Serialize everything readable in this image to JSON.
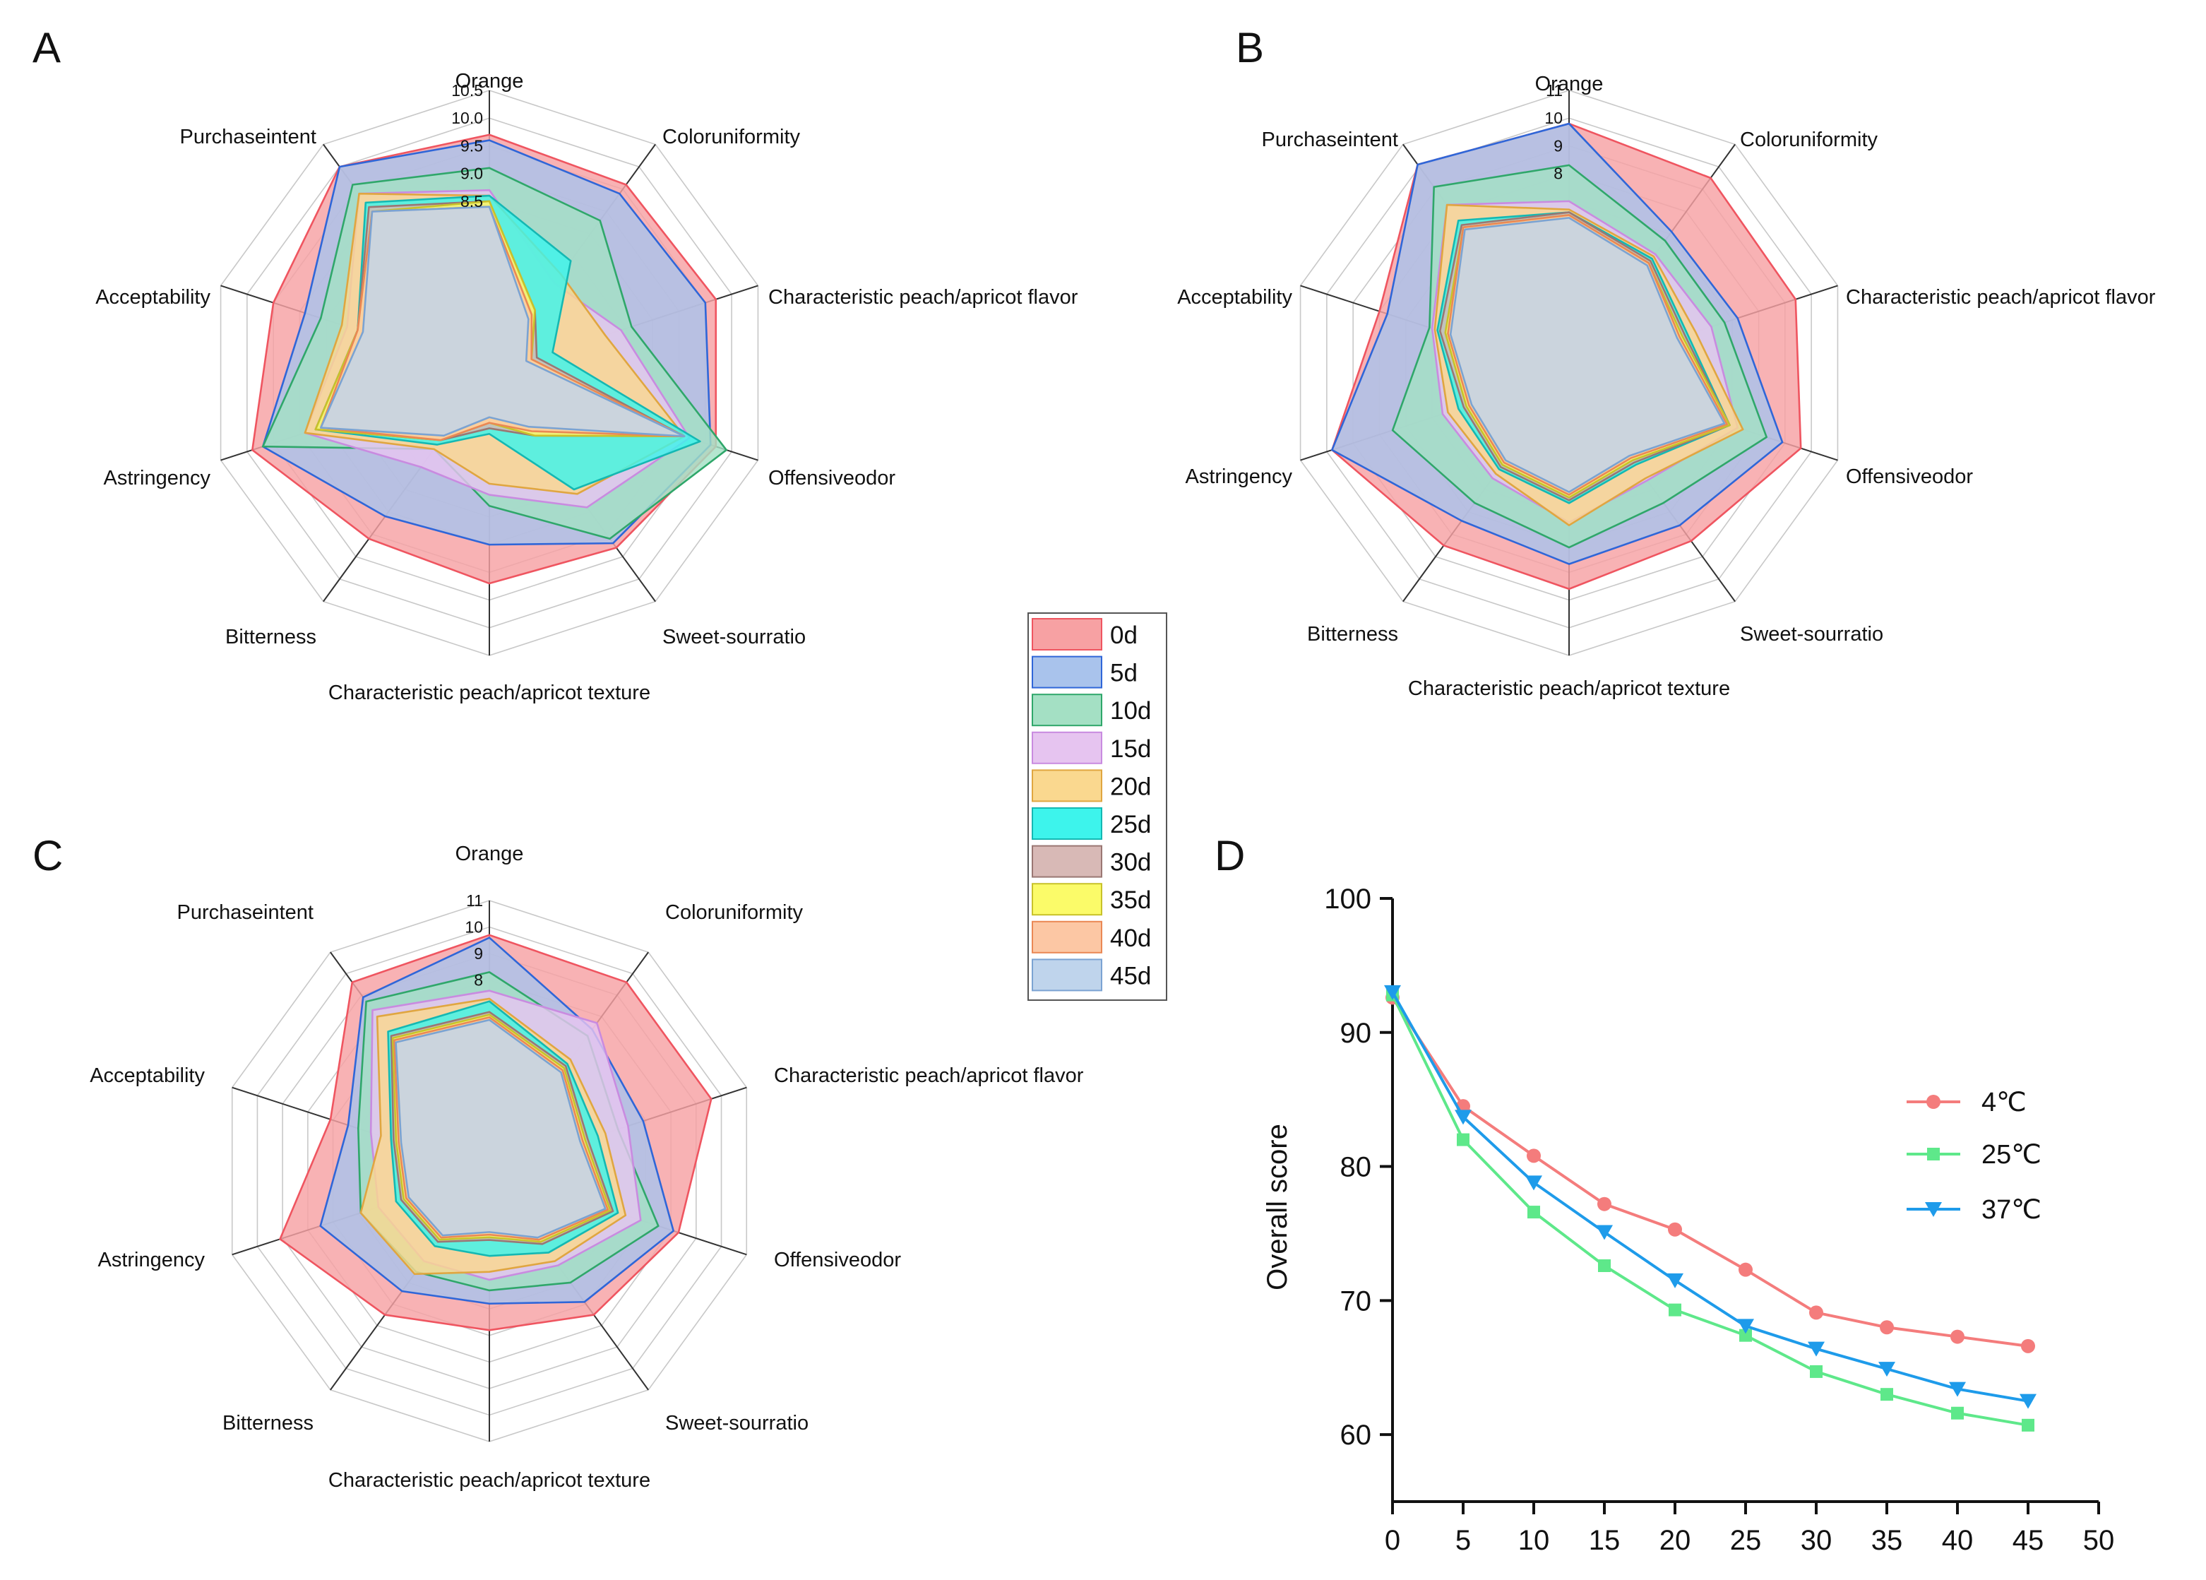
{
  "chart_data": [
    {
      "id": "A",
      "type": "radar",
      "panel_label": "A",
      "axes": [
        "Orange",
        "Coloruniformity",
        "Characteristic peach/apricot flavor",
        "Offensiveodor",
        "Sweet-sourratio",
        "Characteristic peach/apricot texture",
        "Bitterness",
        "Astringency",
        "Acceptability",
        "Purchaseintent"
      ],
      "ring_labels": [
        "10.5",
        "10.0",
        "9.5",
        "9.0",
        "8.5"
      ],
      "rings": [
        10.5,
        10.0,
        9.5,
        9.0,
        8.5,
        8.0,
        7.5,
        7.0,
        6.5,
        6.0,
        5.5
      ],
      "range": [
        5.4,
        10.5
      ],
      "series": [
        {
          "name": "0d",
          "values": [
            9.7,
            9.6,
            9.7,
            9.7,
            9.3,
            9.2,
            9.1,
            9.9,
            9.5,
            10.0
          ]
        },
        {
          "name": "5d",
          "values": [
            9.6,
            9.4,
            9.5,
            9.6,
            9.2,
            8.5,
            8.6,
            9.7,
            8.9,
            10.0
          ]
        },
        {
          "name": "10d",
          "values": [
            9.1,
            8.8,
            8.1,
            9.9,
            9.1,
            7.8,
            7.1,
            9.7,
            8.6,
            9.6
          ]
        },
        {
          "name": "15d",
          "values": [
            8.7,
            7.4,
            7.9,
            9.2,
            8.4,
            7.6,
            7.5,
            8.9,
            8.1,
            9.4
          ]
        },
        {
          "name": "20d",
          "values": [
            8.6,
            7.6,
            7.6,
            9.1,
            8.1,
            7.4,
            7.1,
            8.9,
            8.2,
            9.4
          ]
        },
        {
          "name": "25d",
          "values": [
            8.6,
            7.9,
            6.6,
            9.4,
            8.0,
            6.5,
            7.0,
            8.7,
            7.9,
            9.2
          ]
        },
        {
          "name": "30d",
          "values": [
            8.5,
            6.8,
            6.3,
            9.1,
            6.8,
            6.4,
            6.9,
            8.7,
            7.9,
            9.1
          ]
        },
        {
          "name": "35d",
          "values": [
            8.5,
            6.8,
            6.2,
            9.1,
            6.8,
            6.3,
            6.9,
            8.7,
            7.9,
            9.0
          ]
        },
        {
          "name": "40d",
          "values": [
            8.4,
            6.7,
            6.2,
            9.1,
            6.7,
            6.3,
            6.9,
            8.6,
            7.9,
            9.0
          ]
        },
        {
          "name": "45d",
          "values": [
            8.4,
            6.6,
            6.1,
            9.1,
            6.6,
            6.2,
            6.8,
            8.6,
            7.8,
            9.0
          ]
        }
      ]
    },
    {
      "id": "B",
      "type": "radar",
      "panel_label": "B",
      "axes": [
        "Orange",
        "Coloruniformity",
        "Characteristic peach/apricot flavor",
        "Offensiveodor",
        "Sweet-sourratio",
        "Characteristic peach/apricot texture",
        "Bitterness",
        "Astringency",
        "Acceptability",
        "Purchaseintent"
      ],
      "ring_labels": [
        "11",
        "10",
        "9",
        "8"
      ],
      "rings": [
        11,
        10,
        9,
        8,
        7,
        6,
        5,
        4,
        3,
        2,
        1
      ],
      "range": [
        0.8,
        11
      ],
      "series": [
        {
          "name": "0d",
          "values": [
            9.8,
            9.5,
            9.4,
            9.6,
            8.3,
            8.6,
            8.5,
            9.8,
            8.0,
            10.1
          ]
        },
        {
          "name": "5d",
          "values": [
            9.8,
            7.1,
            7.2,
            8.9,
            7.6,
            7.7,
            7.4,
            9.8,
            7.7,
            10.1
          ]
        },
        {
          "name": "10d",
          "values": [
            8.3,
            6.7,
            6.7,
            8.3,
            6.6,
            7.1,
            6.6,
            7.5,
            6.1,
            9.1
          ]
        },
        {
          "name": "15d",
          "values": [
            7.0,
            6.1,
            6.2,
            7.2,
            5.6,
            6.2,
            5.5,
            5.6,
            6.0,
            8.3
          ]
        },
        {
          "name": "20d",
          "values": [
            6.7,
            6.0,
            5.6,
            7.4,
            5.5,
            6.3,
            5.3,
            5.4,
            5.9,
            8.3
          ]
        },
        {
          "name": "25d",
          "values": [
            6.6,
            5.9,
            5.3,
            6.9,
            4.9,
            5.5,
            5.1,
            5.0,
            5.8,
            7.6
          ]
        },
        {
          "name": "30d",
          "values": [
            6.6,
            5.8,
            5.2,
            6.9,
            4.8,
            5.4,
            5.0,
            4.8,
            5.7,
            7.4
          ]
        },
        {
          "name": "35d",
          "values": [
            6.5,
            5.7,
            5.1,
            6.9,
            4.7,
            5.3,
            4.9,
            4.7,
            5.5,
            7.3
          ]
        },
        {
          "name": "40d",
          "values": [
            6.5,
            5.7,
            5.0,
            6.8,
            4.6,
            5.2,
            4.8,
            4.6,
            5.4,
            7.3
          ]
        },
        {
          "name": "45d",
          "values": [
            6.4,
            5.6,
            4.9,
            6.7,
            4.5,
            5.1,
            4.7,
            4.5,
            5.3,
            7.2
          ]
        }
      ]
    },
    {
      "id": "C",
      "type": "radar",
      "panel_label": "C",
      "axes": [
        "Orange",
        "Coloruniformity",
        "Characteristic peach/apricot flavor",
        "Offensiveodor",
        "Sweet-sourratio",
        "Characteristic peach/apricot texture",
        "Bitterness",
        "Astringency",
        "Acceptability",
        "Purchaseintent"
      ],
      "ring_labels": [
        "11",
        "10",
        "9",
        "8"
      ],
      "rings": [
        11,
        10,
        9,
        8,
        7,
        6,
        5,
        4,
        3,
        2,
        1
      ],
      "range": [
        0.8,
        11
      ],
      "series": [
        {
          "name": "0d",
          "values": [
            9.7,
            9.6,
            9.6,
            8.3,
            7.5,
            6.8,
            7.5,
            9.1,
            7.1,
            9.6
          ]
        },
        {
          "name": "5d",
          "values": [
            9.6,
            7.4,
            6.9,
            8.1,
            6.9,
            5.8,
            6.4,
            7.5,
            6.4,
            8.9
          ]
        },
        {
          "name": "10d",
          "values": [
            8.3,
            7.1,
            5.9,
            7.5,
            6.0,
            5.3,
            5.5,
            5.9,
            6.0,
            8.7
          ]
        },
        {
          "name": "15d",
          "values": [
            7.6,
            7.7,
            6.3,
            6.8,
            5.2,
            4.9,
            5.0,
            5.2,
            5.5,
            8.3
          ]
        },
        {
          "name": "20d",
          "values": [
            7.3,
            6.0,
            5.4,
            6.2,
            5.0,
            4.6,
            5.6,
            5.9,
            5.1,
            8.0
          ]
        },
        {
          "name": "25d",
          "values": [
            7.2,
            5.8,
            5.1,
            5.9,
            4.6,
            4.0,
            4.3,
            4.5,
            4.7,
            7.3
          ]
        },
        {
          "name": "30d",
          "values": [
            6.8,
            5.7,
            4.7,
            5.7,
            4.2,
            3.4,
            4.1,
            4.3,
            4.6,
            7.1
          ]
        },
        {
          "name": "35d",
          "values": [
            6.7,
            5.6,
            4.6,
            5.6,
            4.1,
            3.3,
            4.0,
            4.2,
            4.5,
            7.0
          ]
        },
        {
          "name": "40d",
          "values": [
            6.6,
            5.5,
            4.5,
            5.5,
            4.0,
            3.2,
            3.9,
            4.1,
            4.4,
            6.9
          ]
        },
        {
          "name": "45d",
          "values": [
            6.5,
            5.4,
            4.4,
            5.4,
            3.9,
            3.1,
            3.8,
            4.0,
            4.3,
            6.8
          ]
        }
      ]
    },
    {
      "id": "D",
      "type": "line",
      "panel_label": "D",
      "title": "",
      "xlabel": "",
      "ylabel": "Overall score",
      "x": [
        0,
        5,
        10,
        15,
        20,
        25,
        30,
        35,
        40,
        45
      ],
      "xlim": [
        0,
        50
      ],
      "ylim": [
        55,
        100
      ],
      "xticks": [
        "0",
        "5",
        "10",
        "15",
        "20",
        "25",
        "30",
        "35",
        "40",
        "45",
        "50"
      ],
      "yticks": [
        "60",
        "70",
        "80",
        "90",
        "100"
      ],
      "legend_position": "right",
      "series": [
        {
          "name": "4℃",
          "color": "#F47C7C",
          "marker": "circle",
          "values": [
            92.6,
            84.5,
            80.8,
            77.2,
            75.3,
            72.3,
            69.1,
            68.0,
            67.3,
            66.6
          ]
        },
        {
          "name": "25℃",
          "color": "#5EE88A",
          "marker": "square",
          "values": [
            92.8,
            82.0,
            76.6,
            72.6,
            69.3,
            67.4,
            64.7,
            63.0,
            61.6,
            60.7
          ]
        },
        {
          "name": "37℃",
          "color": "#1E9BEA",
          "marker": "triangle-down",
          "values": [
            93.0,
            83.7,
            78.8,
            75.1,
            71.5,
            68.1,
            66.4,
            64.9,
            63.4,
            62.5
          ]
        }
      ]
    }
  ],
  "legend": {
    "entries": [
      {
        "label": "0d",
        "fill": "#F7A1A3",
        "stroke": "#EF5560"
      },
      {
        "label": "5d",
        "fill": "#A9C3EC",
        "stroke": "#2F66D8"
      },
      {
        "label": "10d",
        "fill": "#A4E0C4",
        "stroke": "#2FA76A"
      },
      {
        "label": "15d",
        "fill": "#E6C4F0",
        "stroke": "#C98BE0"
      },
      {
        "label": "20d",
        "fill": "#FAD88F",
        "stroke": "#E0A640"
      },
      {
        "label": "25d",
        "fill": "#3DF4EC",
        "stroke": "#14B8B3"
      },
      {
        "label": "30d",
        "fill": "#D8B9B6",
        "stroke": "#9A7773"
      },
      {
        "label": "35d",
        "fill": "#FBFB69",
        "stroke": "#C8C22A"
      },
      {
        "label": "40d",
        "fill": "#FCC7A4",
        "stroke": "#EA8855"
      },
      {
        "label": "45d",
        "fill": "#BFD4EC",
        "stroke": "#7BA3D2"
      }
    ]
  },
  "colors": {
    "grid": "#C8C8C8",
    "spoke": "#333333",
    "axis": "#111111"
  }
}
